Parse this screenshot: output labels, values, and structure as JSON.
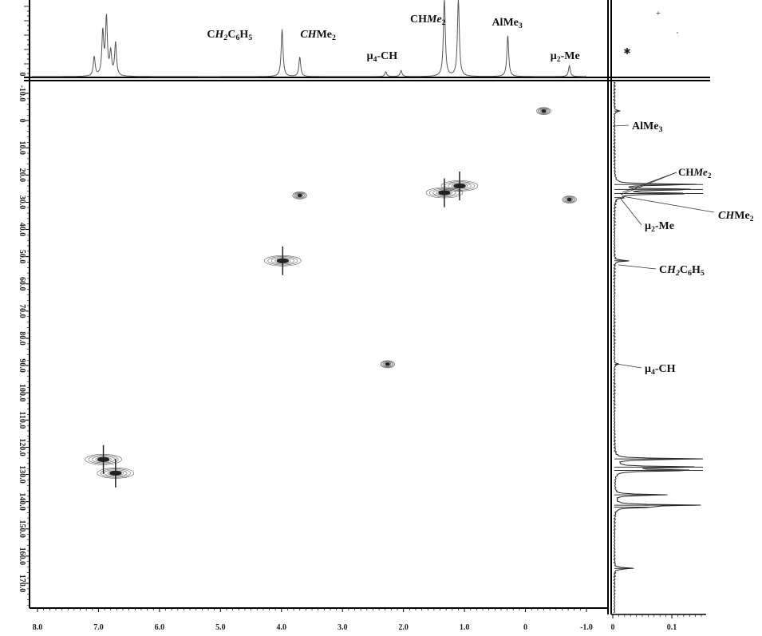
{
  "chart_data": {
    "type": "scatter",
    "subtype": "2D NMR HSQC contour plot with 1D projections",
    "x_axis": {
      "ticks": [
        "8.0",
        "7.0",
        "6.0",
        "5.0",
        "4.0",
        "3.0",
        "2.0",
        "1.0",
        "0",
        "-1.0"
      ],
      "range": [
        8.0,
        -1.0
      ],
      "reversed": true
    },
    "y_axis": {
      "ticks": [
        "-10.0",
        "0",
        "10.0",
        "20.0",
        "30.0",
        "40.0",
        "50.0",
        "60.0",
        "70.0",
        "80.0",
        "90.0",
        "100.0",
        "110.0",
        "120.0",
        "130.0",
        "140.0",
        "150.0",
        "160.0",
        "170.0"
      ],
      "range": [
        -12,
        180
      ],
      "reversed": true
    },
    "projection_x_axis": {
      "ticks": [
        "0",
        "0.1"
      ],
      "range": [
        0,
        0.15
      ]
    },
    "grid": false,
    "cross_peaks": [
      {
        "x": -0.3,
        "y": -3.5,
        "intensity": 0.5
      },
      {
        "x": 3.7,
        "y": 27.5,
        "intensity": 0.6
      },
      {
        "x": 1.33,
        "y": 26.5,
        "intensity": 1.0
      },
      {
        "x": 1.08,
        "y": 24.0,
        "intensity": 1.0
      },
      {
        "x": -0.72,
        "y": 29.0,
        "intensity": 0.5
      },
      {
        "x": 3.98,
        "y": 51.5,
        "intensity": 0.8
      },
      {
        "x": 2.26,
        "y": 89.5,
        "intensity": 0.4
      },
      {
        "x": 6.92,
        "y": 124.5,
        "intensity": 0.9
      },
      {
        "x": 6.72,
        "y": 129.5,
        "intensity": 0.9
      }
    ],
    "h_spectrum_peaks": [
      {
        "x": 7.07,
        "h": 0.32
      },
      {
        "x": 6.93,
        "h": 0.72
      },
      {
        "x": 6.87,
        "h": 0.95
      },
      {
        "x": 6.8,
        "h": 0.38
      },
      {
        "x": 6.72,
        "h": 0.55
      },
      {
        "x": 3.99,
        "h": 0.78
      },
      {
        "x": 3.7,
        "h": 0.32
      },
      {
        "x": 2.29,
        "h": 0.08
      },
      {
        "x": 2.04,
        "h": 0.1
      },
      {
        "x": 1.33,
        "h": 1.3
      },
      {
        "x": 1.1,
        "h": 1.3
      },
      {
        "x": 0.29,
        "h": 0.68
      },
      {
        "x": -0.72,
        "h": 0.18
      }
    ],
    "c_spectrum_peaks": [
      {
        "y": -3.5,
        "v": 0.01
      },
      {
        "y": 23.5,
        "v": 0.15
      },
      {
        "y": 25.3,
        "v": 0.15
      },
      {
        "y": 26.8,
        "v": 0.15
      },
      {
        "y": 28.3,
        "v": 0.012
      },
      {
        "y": 51.5,
        "v": 0.025
      },
      {
        "y": 89.5,
        "v": 0.008
      },
      {
        "y": 124.3,
        "v": 0.15
      },
      {
        "y": 127.3,
        "v": 0.15
      },
      {
        "y": 128.5,
        "v": 0.15
      },
      {
        "y": 137.5,
        "v": 0.09
      },
      {
        "y": 141.3,
        "v": 0.14
      },
      {
        "y": 142.0,
        "v": 0.06
      },
      {
        "y": 164.5,
        "v": 0.033
      }
    ],
    "annotations_top": [
      {
        "text_parts": [
          {
            "t": "C"
          },
          {
            "t": "H",
            "italic": true
          },
          {
            "t": "2",
            "sub": true,
            "italic": true
          },
          {
            "t": "C"
          },
          {
            "t": "6",
            "sub": true
          },
          {
            "t": "H"
          },
          {
            "t": "5",
            "sub": true
          }
        ],
        "x": 4.85,
        "level": "low"
      },
      {
        "text_parts": [
          {
            "t": "CH",
            "italic": true
          },
          {
            "t": "Me"
          },
          {
            "t": "2",
            "sub": true
          }
        ],
        "x": 3.4,
        "level": "low"
      },
      {
        "text_parts": [
          {
            "t": "μ"
          },
          {
            "t": "4",
            "sub": true
          },
          {
            "t": "-CH"
          }
        ],
        "x": 2.35,
        "level": "mid"
      },
      {
        "text_parts": [
          {
            "t": "CH"
          },
          {
            "t": "Me",
            "italic": true
          },
          {
            "t": "2",
            "sub": true
          }
        ],
        "x": 1.6,
        "level": "high"
      },
      {
        "text_parts": [
          {
            "t": "AlMe"
          },
          {
            "t": "3",
            "sub": true
          }
        ],
        "x": 0.3,
        "level": "mid-high"
      },
      {
        "text_parts": [
          {
            "t": "μ"
          },
          {
            "t": "2",
            "sub": true
          },
          {
            "t": "-Me"
          }
        ],
        "x": -0.65,
        "level": "mid"
      }
    ],
    "annotations_right": [
      {
        "text_parts": [
          {
            "t": "AlMe"
          },
          {
            "t": "3",
            "sub": true
          }
        ],
        "y": -3.5
      },
      {
        "text_parts": [
          {
            "t": "CH"
          },
          {
            "t": "Me",
            "italic": true
          },
          {
            "t": "2",
            "sub": true
          }
        ],
        "y": 17.0
      },
      {
        "text_parts": [
          {
            "t": "CH",
            "italic": true
          },
          {
            "t": "Me"
          },
          {
            "t": "2",
            "sub": true
          }
        ],
        "y": 34.0
      },
      {
        "text_parts": [
          {
            "t": "μ"
          },
          {
            "t": "2",
            "sub": true
          },
          {
            "t": "-Me"
          }
        ],
        "y": 39.5
      },
      {
        "text_parts": [
          {
            "t": "C"
          },
          {
            "t": "H",
            "italic": true
          },
          {
            "t": "2",
            "sub": true,
            "italic": true
          },
          {
            "t": "C"
          },
          {
            "t": "6",
            "sub": true
          },
          {
            "t": "H"
          },
          {
            "t": "5",
            "sub": true
          }
        ],
        "y": 53.0
      },
      {
        "text_parts": [
          {
            "t": "μ"
          },
          {
            "t": "4",
            "sub": true
          },
          {
            "t": "-CH"
          }
        ],
        "y": 89.5
      }
    ]
  }
}
